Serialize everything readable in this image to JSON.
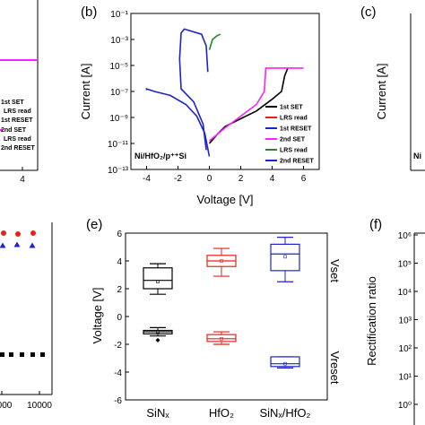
{
  "panels": {
    "a": {
      "legend": [
        "1st SET",
        "LRS read",
        "1st RESET",
        "2nd SET",
        "LRS read",
        "2nd RESET"
      ],
      "x_tick": "4"
    },
    "b": {
      "label": "(b)",
      "inset": "Ni/HfO₂/p⁺⁺Si"
    },
    "c": {
      "label": "(c)",
      "ylabel": "Current [A]",
      "inset": "Ni"
    },
    "d": {
      "x_ticks": [
        "000",
        "10000"
      ]
    },
    "e": {
      "label": "(e)",
      "vset_label": "Vset",
      "vreset_label": "Vreset"
    },
    "f": {
      "label": "(f)",
      "ylabel": "Rectification ratio",
      "y_ticks": [
        "10⁶",
        "10⁵",
        "10⁴",
        "10³",
        "10²",
        "10¹",
        "10⁰"
      ]
    }
  },
  "colors": {
    "black": "#000000",
    "red": "#e8211b",
    "blue": "#1d24c9",
    "magenta": "#ff1fff",
    "green": "#1c8c2a"
  },
  "chart_data": [
    {
      "id": "b",
      "type": "line",
      "xlabel": "Voltage [V]",
      "ylabel": "Current [A]",
      "xlim": [
        -5,
        7
      ],
      "ylim_log10": [
        -13,
        -1
      ],
      "x_ticks": [
        "-4",
        "-2",
        "0",
        "2",
        "4",
        "6"
      ],
      "y_ticks": [
        "10⁻¹",
        "10⁻³",
        "10⁻⁵",
        "10⁻⁷",
        "10⁻⁹",
        "10⁻¹¹",
        "10⁻¹³"
      ],
      "legend": [
        "1st SET",
        "LRS read",
        "1st RESET",
        "2nd SET",
        "LRS read",
        "2nd RESET"
      ],
      "series": [
        {
          "name": "1st SET",
          "color": "black",
          "points": [
            [
              0,
              -11
            ],
            [
              0.5,
              -10.3
            ],
            [
              1,
              -9.7
            ],
            [
              2,
              -9.1
            ],
            [
              3,
              -8.5
            ],
            [
              4,
              -7.6
            ],
            [
              4.6,
              -7.0
            ],
            [
              4.8,
              -5.8
            ],
            [
              5,
              -5.2
            ]
          ]
        },
        {
          "name": "1st RESET",
          "color": "blue",
          "points": [
            [
              0,
              -12
            ],
            [
              -0.3,
              -10.2
            ],
            [
              -0.8,
              -8.9
            ],
            [
              -1.5,
              -8.0
            ],
            [
              -2.5,
              -7.3
            ],
            [
              -3.5,
              -7.0
            ],
            [
              -4,
              -6.8
            ],
            [
              -4,
              -6.9
            ]
          ]
        },
        {
          "name": "2nd SET",
          "color": "magenta",
          "points": [
            [
              0,
              -10.8
            ],
            [
              1,
              -9.8
            ],
            [
              2,
              -8.9
            ],
            [
              3,
              -8.0
            ],
            [
              3.5,
              -7.0
            ],
            [
              3.6,
              -5.2
            ],
            [
              6,
              -5.2
            ]
          ]
        },
        {
          "name": "LRS read",
          "color": "green",
          "points": [
            [
              0,
              -3.8
            ],
            [
              0.2,
              -3.0
            ],
            [
              0.5,
              -2.7
            ],
            [
              0.7,
              -2.6
            ]
          ]
        },
        {
          "name": "2nd RESET",
          "color": "blue",
          "points": [
            [
              -0.2,
              -11.5
            ],
            [
              -0.4,
              -9.5
            ],
            [
              -1.0,
              -7.8
            ],
            [
              -1.8,
              -6.8
            ],
            [
              -1.9,
              -4.5
            ],
            [
              -1.8,
              -2.5
            ],
            [
              -1.6,
              -2.2
            ],
            [
              -0.5,
              -2.6
            ],
            [
              -0.2,
              -3.5
            ],
            [
              -0.1,
              -5.5
            ]
          ]
        }
      ]
    },
    {
      "id": "e",
      "type": "box",
      "ylabel": "Voltage [V]",
      "ylim": [
        -6,
        6
      ],
      "y_ticks": [
        "6",
        "4",
        "2",
        "0",
        "-2",
        "-4",
        "-6"
      ],
      "categories": [
        "SiNₓ",
        "HfO₂",
        "SiNₓ/HfO₂"
      ],
      "boxes": [
        {
          "category": 0,
          "kind": "Vset",
          "color": "black",
          "min": 1.6,
          "q1": 2.0,
          "median": 2.6,
          "q3": 3.5,
          "max": 3.8,
          "mean": 2.5
        },
        {
          "category": 0,
          "kind": "Vreset",
          "color": "black",
          "min": -1.4,
          "q1": -1.25,
          "median": -1.1,
          "q3": -1.0,
          "max": -0.8,
          "mean": -1.1,
          "outlier": -1.7
        },
        {
          "category": 1,
          "kind": "Vset",
          "color": "red",
          "min": 2.9,
          "q1": 3.6,
          "median": 4.0,
          "q3": 4.4,
          "max": 4.9,
          "mean": 4.0
        },
        {
          "category": 1,
          "kind": "Vreset",
          "color": "red",
          "min": -2.0,
          "q1": -1.8,
          "median": -1.6,
          "q3": -1.3,
          "max": -1.1,
          "mean": -1.6
        },
        {
          "category": 2,
          "kind": "Vset",
          "color": "blue",
          "min": 2.5,
          "q1": 3.3,
          "median": 4.5,
          "q3": 5.2,
          "max": 5.7,
          "mean": 4.3
        },
        {
          "category": 2,
          "kind": "Vreset",
          "color": "blue",
          "min": -3.7,
          "q1": -3.6,
          "median": -3.4,
          "q3": -2.9,
          "max": -2.9,
          "mean": -3.4
        }
      ]
    }
  ]
}
